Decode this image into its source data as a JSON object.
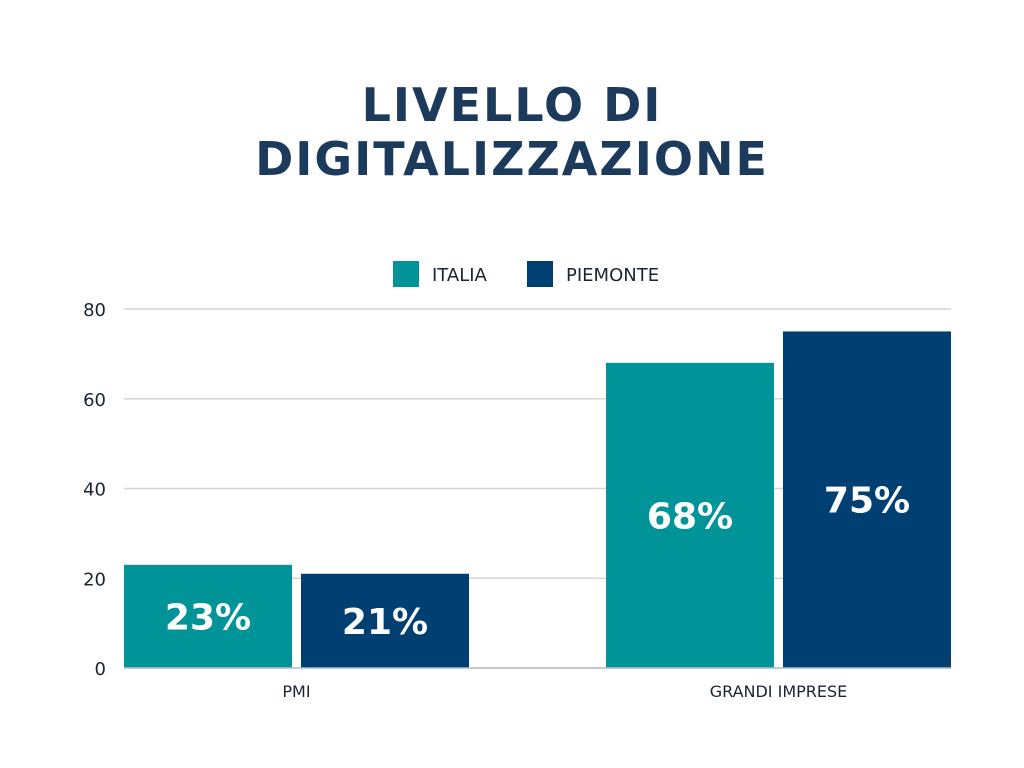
{
  "chart_data": {
    "type": "bar",
    "title_lines": [
      "LIVELLO DI",
      "DIGITALIZZAZIONE"
    ],
    "categories": [
      "PMI",
      "GRANDI IMPRESE"
    ],
    "series": [
      {
        "name": "ITALIA",
        "color": "#009498",
        "values": [
          23,
          68
        ],
        "labels": [
          "23%",
          "68%"
        ]
      },
      {
        "name": "PIEMONTE",
        "color": "#003f72",
        "values": [
          21,
          75
        ],
        "labels": [
          "21%",
          "75%"
        ]
      }
    ],
    "ylim": [
      0,
      80
    ],
    "yticks": [
      "0",
      "20",
      "40",
      "60",
      "80"
    ],
    "grid": true,
    "legend": "top-center"
  }
}
